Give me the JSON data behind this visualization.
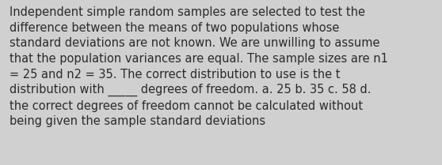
{
  "lines": [
    "Independent simple random samples are selected to test the",
    "difference between the means of two populations whose",
    "standard deviations are not known. We are unwilling to assume",
    "that the population variances are equal. The sample sizes are n1",
    "= 25 and n2 = 35. The correct distribution to use is the t",
    "distribution with _____ degrees of freedom. a. 25 b. 35 c. 58 d.",
    "the correct degrees of freedom cannot be calculated without",
    "being given the sample standard deviations"
  ],
  "bg_color": "#d0d0d0",
  "text_color": "#2b2b2b",
  "font_size": 10.5,
  "fig_width": 5.58,
  "fig_height": 2.09,
  "dpi": 100
}
